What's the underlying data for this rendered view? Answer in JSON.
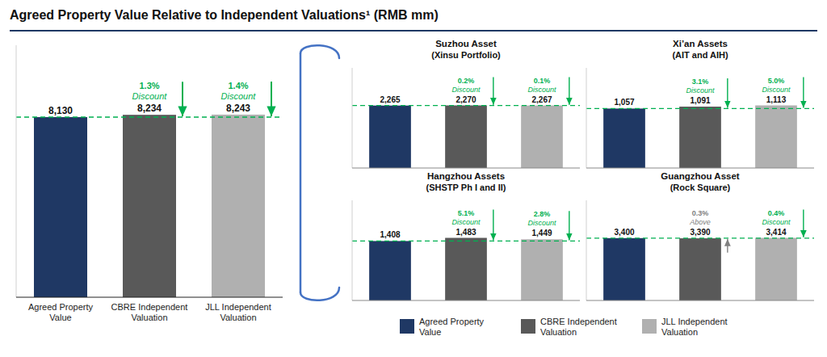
{
  "chart_data": [
    {
      "type": "bar",
      "title": "Agreed Property Value Relative to Independent Valuations¹ (RMB mm)",
      "categories": [
        "Agreed Property\nValue",
        "CBRE Independent\nValuation",
        "JLL Independent\nValuation"
      ],
      "values": [
        8130,
        8234,
        8243
      ],
      "value_labels": [
        "8,130",
        "8,234",
        "8,243"
      ],
      "colors": [
        "#1f3864",
        "#595959",
        "#b0b0b0"
      ],
      "data_labels": true,
      "ylim": [
        0,
        11375.34
      ],
      "yticks": [],
      "tick_labels": "x",
      "reference_line": {
        "value": 8130,
        "color": "#00b050",
        "line_style": "dashed"
      },
      "annotations": [
        {
          "index": 1,
          "text": "1.3%",
          "note": "Discount",
          "color": "#00b050"
        },
        {
          "index": 2,
          "text": "1.4%",
          "note": "Discount",
          "color": "#00b050"
        }
      ],
      "legend": "lower right"
    },
    {
      "type": "bar",
      "title": "Suzhou Asset",
      "subtitle": "(Xinsu Portfolio)",
      "categories": [
        "Agreed Property\nValue",
        "CBRE Independent\nValuation",
        "JLL Independent\nValuation"
      ],
      "values": [
        2265,
        2270,
        2267
      ],
      "value_labels": [
        "2,265",
        "2,270",
        "2,267"
      ],
      "colors": [
        "#1f3864",
        "#595959",
        "#b0b0b0"
      ],
      "data_labels": true,
      "ylim": [
        0,
        3632
      ],
      "yticks": [],
      "tick_labels": false,
      "reference_line": {
        "value": 2265,
        "color": "#00b050",
        "line_style": "dashed"
      },
      "annotations": [
        {
          "index": 1,
          "text": "0.2%",
          "note": "Discount",
          "color": "#00b050"
        },
        {
          "index": 2,
          "text": "0.1%",
          "note": "Discount",
          "color": "#00b050"
        }
      ]
    },
    {
      "type": "bar",
      "title": "Xi’an Assets",
      "subtitle": "(AIT and AIH)",
      "categories": [
        "Agreed Property\nValue",
        "CBRE Independent\nValuation",
        "JLL Independent\nValuation"
      ],
      "values": [
        1057,
        1091,
        1113
      ],
      "value_labels": [
        "1,057",
        "1,091",
        "1,113"
      ],
      "colors": [
        "#1f3864",
        "#595959",
        "#b0b0b0"
      ],
      "data_labels": true,
      "ylim": [
        0,
        1780.8
      ],
      "yticks": [],
      "tick_labels": false,
      "reference_line": {
        "value": 1057,
        "color": "#00b050",
        "line_style": "dashed"
      },
      "annotations": [
        {
          "index": 1,
          "text": "3.1%",
          "note": "Discount",
          "color": "#00b050"
        },
        {
          "index": 2,
          "text": "5.0%",
          "note": "Discount",
          "color": "#00b050"
        }
      ]
    },
    {
      "type": "bar",
      "title": "Hangzhou Assets",
      "subtitle": "(SHSTP Ph I and II)",
      "categories": [
        "Agreed Property\nValue",
        "CBRE Independent\nValuation",
        "JLL Independent\nValuation"
      ],
      "values": [
        1408,
        1483,
        1449
      ],
      "value_labels": [
        "1,408",
        "1,483",
        "1,449"
      ],
      "colors": [
        "#1f3864",
        "#595959",
        "#b0b0b0"
      ],
      "data_labels": true,
      "ylim": [
        0,
        2372.8
      ],
      "yticks": [],
      "tick_labels": false,
      "reference_line": {
        "value": 1408,
        "color": "#00b050",
        "line_style": "dashed"
      },
      "annotations": [
        {
          "index": 1,
          "text": "5.1%",
          "note": "Discount",
          "color": "#00b050"
        },
        {
          "index": 2,
          "text": "2.8%",
          "note": "Discount",
          "color": "#00b050"
        }
      ]
    },
    {
      "type": "bar",
      "title": "Guangzhou Asset",
      "subtitle": "(Rock Square)",
      "categories": [
        "Agreed Property\nValue",
        "CBRE Independent\nValuation",
        "JLL Independent\nValuation"
      ],
      "values": [
        3400,
        3390,
        3414
      ],
      "value_labels": [
        "3,400",
        "3,390",
        "3,414"
      ],
      "colors": [
        "#1f3864",
        "#595959",
        "#b0b0b0"
      ],
      "data_labels": true,
      "ylim": [
        0,
        5462.4
      ],
      "yticks": [],
      "tick_labels": false,
      "reference_line": {
        "value": 3400,
        "color": "#00b050",
        "line_style": "dashed"
      },
      "annotations": [
        {
          "index": 1,
          "text": "0.3%",
          "note": "Above",
          "color": "#808080"
        },
        {
          "index": 2,
          "text": "0.4%",
          "note": "Discount",
          "color": "#00b050"
        }
      ]
    }
  ]
}
